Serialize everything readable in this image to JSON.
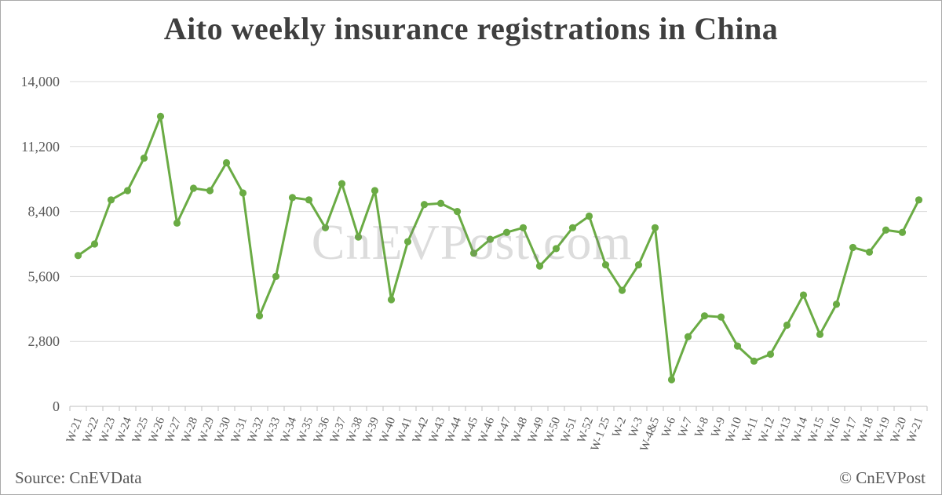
{
  "title": "Aito weekly insurance registrations in China",
  "watermark": "CnEVPost.com",
  "footer": {
    "source": "Source: CnEVData",
    "copyright": "© CnEVPost"
  },
  "colors": {
    "line": "#6aab44",
    "marker": "#6aab44",
    "grid": "#d9d9d9",
    "axis": "#bfbfbf",
    "axis_text": "#595959",
    "title_text": "#3f3f3f"
  },
  "chart_data": {
    "type": "line",
    "title": "Aito weekly insurance registrations in China",
    "categories": [
      "W-21",
      "W-22",
      "W-23",
      "W-24",
      "W-25",
      "W-26",
      "W-27",
      "W-28",
      "W-29",
      "W-30",
      "W-31",
      "W-32",
      "W-33",
      "W-34",
      "W-35",
      "W-36",
      "W-37",
      "W-38",
      "W-39",
      "W-40",
      "W-41",
      "W-42",
      "W-43",
      "W-44",
      "W-45",
      "W-46",
      "W-47",
      "W-48",
      "W-49",
      "W-50",
      "W-51",
      "W-52",
      "W-1 25",
      "W-2",
      "W-3",
      "W-4&5",
      "W-6",
      "W-7",
      "W-8",
      "W-9",
      "W-10",
      "W-11",
      "W-12",
      "W-13",
      "W-14",
      "W-15",
      "W-16",
      "W-17",
      "W-18",
      "W-19",
      "W-20",
      "W-21"
    ],
    "values": [
      6500,
      7000,
      8900,
      9300,
      10700,
      12500,
      7900,
      9400,
      9300,
      10500,
      9200,
      3900,
      5600,
      9000,
      8900,
      7700,
      9600,
      7300,
      9300,
      4600,
      7100,
      8700,
      8750,
      8400,
      6600,
      7200,
      7500,
      7700,
      6050,
      6800,
      7700,
      8200,
      6100,
      5000,
      6100,
      7700,
      1150,
      3000,
      3900,
      3850,
      2600,
      1950,
      2250,
      3500,
      4800,
      3100,
      4400,
      6850,
      6650,
      7600,
      7500,
      8900
    ],
    "xlabel": "",
    "ylabel": "",
    "ylim": [
      0,
      14000
    ],
    "yticks": [
      0,
      2800,
      5600,
      8400,
      11200,
      14000
    ],
    "ytick_labels": [
      "0",
      "2,800",
      "5,600",
      "8,400",
      "11,200",
      "14,000"
    ],
    "grid": "horizontal",
    "legend": "none",
    "marker": "circle",
    "x_label_rotation": -70
  }
}
